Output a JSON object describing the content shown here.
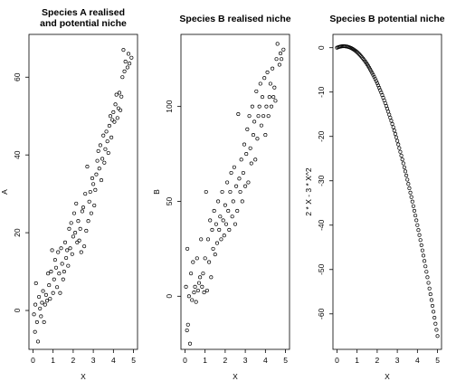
{
  "chart_data": [
    {
      "type": "scatter",
      "title": [
        "Species A realised",
        "and potential niche"
      ],
      "xlabel": "X",
      "ylabel": "A",
      "xlim": [
        -0.2,
        5.2
      ],
      "ylim": [
        -10,
        71
      ],
      "xticks": [
        0,
        1,
        2,
        3,
        4,
        5
      ],
      "yticks": [
        0,
        20,
        40,
        60
      ],
      "ytick_labels": [
        "0",
        "20",
        "40",
        "60"
      ],
      "points": [
        [
          0.05,
          -1
        ],
        [
          0.1,
          -5.5
        ],
        [
          0.12,
          1.5
        ],
        [
          0.15,
          7
        ],
        [
          0.2,
          -3
        ],
        [
          0.25,
          -8
        ],
        [
          0.3,
          3.5
        ],
        [
          0.35,
          0.5
        ],
        [
          0.4,
          -1.5
        ],
        [
          0.45,
          2
        ],
        [
          0.5,
          5
        ],
        [
          0.55,
          -3
        ],
        [
          0.6,
          1.5
        ],
        [
          0.65,
          4
        ],
        [
          0.7,
          2.5
        ],
        [
          0.75,
          9.5
        ],
        [
          0.8,
          6.5
        ],
        [
          0.85,
          3
        ],
        [
          0.9,
          10
        ],
        [
          0.95,
          15.5
        ],
        [
          1.0,
          4.5
        ],
        [
          1.05,
          8
        ],
        [
          1.1,
          13
        ],
        [
          1.15,
          11
        ],
        [
          1.2,
          6
        ],
        [
          1.25,
          15
        ],
        [
          1.3,
          9.5
        ],
        [
          1.35,
          4.5
        ],
        [
          1.4,
          16
        ],
        [
          1.45,
          12
        ],
        [
          1.5,
          8
        ],
        [
          1.55,
          10
        ],
        [
          1.6,
          17.5
        ],
        [
          1.65,
          13.5
        ],
        [
          1.7,
          15.5
        ],
        [
          1.75,
          11.5
        ],
        [
          1.8,
          21
        ],
        [
          1.85,
          16
        ],
        [
          1.9,
          22.5
        ],
        [
          1.95,
          14.5
        ],
        [
          2.0,
          19
        ],
        [
          2.05,
          25
        ],
        [
          2.1,
          20
        ],
        [
          2.15,
          27.5
        ],
        [
          2.2,
          17.5
        ],
        [
          2.25,
          23
        ],
        [
          2.3,
          18
        ],
        [
          2.35,
          21
        ],
        [
          2.4,
          15
        ],
        [
          2.45,
          25.5
        ],
        [
          2.5,
          26.5
        ],
        [
          2.55,
          16.5
        ],
        [
          2.6,
          30
        ],
        [
          2.65,
          20.5
        ],
        [
          2.7,
          37
        ],
        [
          2.75,
          23
        ],
        [
          2.8,
          28
        ],
        [
          2.85,
          30.5
        ],
        [
          2.9,
          25
        ],
        [
          2.95,
          34
        ],
        [
          3.0,
          32.5
        ],
        [
          3.05,
          27
        ],
        [
          3.1,
          31
        ],
        [
          3.15,
          35
        ],
        [
          3.2,
          38.5
        ],
        [
          3.25,
          41
        ],
        [
          3.3,
          36.5
        ],
        [
          3.35,
          42.5
        ],
        [
          3.4,
          33.5
        ],
        [
          3.45,
          39
        ],
        [
          3.5,
          45
        ],
        [
          3.55,
          38
        ],
        [
          3.6,
          41.5
        ],
        [
          3.65,
          46
        ],
        [
          3.7,
          43.5
        ],
        [
          3.75,
          40.5
        ],
        [
          3.8,
          47.5
        ],
        [
          3.85,
          50
        ],
        [
          3.9,
          44.5
        ],
        [
          3.95,
          49
        ],
        [
          4.0,
          51
        ],
        [
          4.05,
          48.5
        ],
        [
          4.1,
          53
        ],
        [
          4.15,
          55.5
        ],
        [
          4.2,
          49.5
        ],
        [
          4.25,
          52
        ],
        [
          4.3,
          56
        ],
        [
          4.35,
          51.5
        ],
        [
          4.4,
          55
        ],
        [
          4.45,
          60
        ],
        [
          4.5,
          67
        ],
        [
          4.55,
          61.5
        ],
        [
          4.6,
          64
        ],
        [
          4.7,
          62.5
        ],
        [
          4.75,
          66
        ],
        [
          4.8,
          63.5
        ],
        [
          4.9,
          65
        ]
      ]
    },
    {
      "type": "scatter",
      "title": [
        "Species B realised niche"
      ],
      "xlabel": "X",
      "ylabel": "B",
      "xlim": [
        -0.2,
        5.2
      ],
      "ylim": [
        -28,
        138
      ],
      "xticks": [
        0,
        1,
        2,
        3,
        4,
        5
      ],
      "yticks": [
        0,
        50,
        100
      ],
      "ytick_labels": [
        "0",
        "50",
        "100"
      ],
      "points": [
        [
          0.05,
          5
        ],
        [
          0.1,
          -18
        ],
        [
          0.12,
          25
        ],
        [
          0.15,
          -15
        ],
        [
          0.2,
          0
        ],
        [
          0.25,
          -25
        ],
        [
          0.3,
          12
        ],
        [
          0.35,
          -2
        ],
        [
          0.4,
          18
        ],
        [
          0.45,
          2
        ],
        [
          0.5,
          5
        ],
        [
          0.55,
          -3
        ],
        [
          0.6,
          20
        ],
        [
          0.65,
          3
        ],
        [
          0.7,
          7
        ],
        [
          0.75,
          10
        ],
        [
          0.8,
          30
        ],
        [
          0.85,
          5
        ],
        [
          0.9,
          12
        ],
        [
          0.95,
          2
        ],
        [
          1.0,
          20
        ],
        [
          1.05,
          55
        ],
        [
          1.1,
          3
        ],
        [
          1.15,
          30
        ],
        [
          1.2,
          18
        ],
        [
          1.25,
          40
        ],
        [
          1.3,
          10
        ],
        [
          1.35,
          35
        ],
        [
          1.4,
          25
        ],
        [
          1.45,
          45
        ],
        [
          1.5,
          22
        ],
        [
          1.55,
          38
        ],
        [
          1.6,
          28
        ],
        [
          1.65,
          50
        ],
        [
          1.7,
          35
        ],
        [
          1.75,
          42
        ],
        [
          1.8,
          30
        ],
        [
          1.85,
          55
        ],
        [
          1.9,
          40
        ],
        [
          1.95,
          32
        ],
        [
          2.0,
          48
        ],
        [
          2.05,
          38
        ],
        [
          2.1,
          60
        ],
        [
          2.15,
          45
        ],
        [
          2.2,
          35
        ],
        [
          2.25,
          55
        ],
        [
          2.3,
          65
        ],
        [
          2.35,
          42
        ],
        [
          2.4,
          50
        ],
        [
          2.45,
          68
        ],
        [
          2.5,
          38
        ],
        [
          2.55,
          58
        ],
        [
          2.6,
          45
        ],
        [
          2.65,
          96
        ],
        [
          2.7,
          62
        ],
        [
          2.75,
          55
        ],
        [
          2.8,
          72
        ],
        [
          2.85,
          50
        ],
        [
          2.9,
          65
        ],
        [
          2.95,
          80
        ],
        [
          3.0,
          58
        ],
        [
          3.05,
          75
        ],
        [
          3.1,
          88
        ],
        [
          3.15,
          60
        ],
        [
          3.2,
          95
        ],
        [
          3.25,
          78
        ],
        [
          3.3,
          70
        ],
        [
          3.35,
          100
        ],
        [
          3.4,
          85
        ],
        [
          3.45,
          92
        ],
        [
          3.5,
          72
        ],
        [
          3.55,
          108
        ],
        [
          3.6,
          83
        ],
        [
          3.65,
          95
        ],
        [
          3.7,
          100
        ],
        [
          3.75,
          112
        ],
        [
          3.8,
          90
        ],
        [
          3.85,
          105
        ],
        [
          3.9,
          95
        ],
        [
          3.95,
          115
        ],
        [
          4.0,
          85
        ],
        [
          4.05,
          100
        ],
        [
          4.1,
          118
        ],
        [
          4.15,
          95
        ],
        [
          4.2,
          105
        ],
        [
          4.25,
          112
        ],
        [
          4.3,
          100
        ],
        [
          4.35,
          120
        ],
        [
          4.4,
          105
        ],
        [
          4.45,
          110
        ],
        [
          4.5,
          103
        ],
        [
          4.55,
          125
        ],
        [
          4.6,
          133
        ],
        [
          4.7,
          122
        ],
        [
          4.75,
          128
        ],
        [
          4.8,
          125
        ],
        [
          4.9,
          130
        ]
      ]
    },
    {
      "type": "scatter",
      "title": [
        "Species B potential niche"
      ],
      "xlabel": "X",
      "ylabel": "2 * X - 3 * X^2",
      "xlim": [
        -0.2,
        5.2
      ],
      "ylim": [
        -68,
        3
      ],
      "xticks": [
        0,
        1,
        2,
        3,
        4,
        5
      ],
      "yticks": [
        0,
        -10,
        -20,
        -30,
        -40,
        -50,
        -60
      ],
      "ytick_labels": [
        "0",
        "-10",
        "-20",
        "-30",
        "-40",
        "-50",
        "-60"
      ],
      "points": [
        [
          0.0,
          0.0
        ],
        [
          0.05,
          0.09
        ],
        [
          0.1,
          0.17
        ],
        [
          0.15,
          0.23
        ],
        [
          0.2,
          0.28
        ],
        [
          0.25,
          0.31
        ],
        [
          0.3,
          0.33
        ],
        [
          0.35,
          0.33
        ],
        [
          0.4,
          0.32
        ],
        [
          0.45,
          0.29
        ],
        [
          0.5,
          0.25
        ],
        [
          0.55,
          0.19
        ],
        [
          0.6,
          0.12
        ],
        [
          0.65,
          0.03
        ],
        [
          0.7,
          -0.07
        ],
        [
          0.75,
          -0.19
        ],
        [
          0.8,
          -0.32
        ],
        [
          0.85,
          -0.47
        ],
        [
          0.9,
          -0.63
        ],
        [
          0.95,
          -0.81
        ],
        [
          1.0,
          -1.0
        ],
        [
          1.05,
          -1.21
        ],
        [
          1.1,
          -1.43
        ],
        [
          1.15,
          -1.67
        ],
        [
          1.2,
          -1.92
        ],
        [
          1.25,
          -2.19
        ],
        [
          1.3,
          -2.47
        ],
        [
          1.35,
          -2.77
        ],
        [
          1.4,
          -3.08
        ],
        [
          1.45,
          -3.41
        ],
        [
          1.5,
          -3.75
        ],
        [
          1.55,
          -4.11
        ],
        [
          1.6,
          -4.48
        ],
        [
          1.65,
          -4.87
        ],
        [
          1.7,
          -5.27
        ],
        [
          1.75,
          -5.69
        ],
        [
          1.8,
          -6.12
        ],
        [
          1.85,
          -6.57
        ],
        [
          1.9,
          -7.03
        ],
        [
          1.95,
          -7.51
        ],
        [
          2.0,
          -8.0
        ],
        [
          2.05,
          -8.51
        ],
        [
          2.1,
          -9.03
        ],
        [
          2.15,
          -9.57
        ],
        [
          2.2,
          -10.12
        ],
        [
          2.25,
          -10.69
        ],
        [
          2.3,
          -11.27
        ],
        [
          2.35,
          -11.87
        ],
        [
          2.4,
          -12.48
        ],
        [
          2.45,
          -13.11
        ],
        [
          2.5,
          -13.75
        ],
        [
          2.55,
          -14.41
        ],
        [
          2.6,
          -15.08
        ],
        [
          2.65,
          -15.77
        ],
        [
          2.7,
          -16.47
        ],
        [
          2.75,
          -17.19
        ],
        [
          2.8,
          -17.92
        ],
        [
          2.85,
          -18.67
        ],
        [
          2.9,
          -19.43
        ],
        [
          2.95,
          -20.21
        ],
        [
          3.0,
          -21.0
        ],
        [
          3.05,
          -21.81
        ],
        [
          3.1,
          -22.63
        ],
        [
          3.15,
          -23.47
        ],
        [
          3.2,
          -24.32
        ],
        [
          3.25,
          -25.19
        ],
        [
          3.3,
          -26.07
        ],
        [
          3.35,
          -26.97
        ],
        [
          3.4,
          -27.88
        ],
        [
          3.45,
          -28.81
        ],
        [
          3.5,
          -29.75
        ],
        [
          3.55,
          -30.71
        ],
        [
          3.6,
          -31.68
        ],
        [
          3.65,
          -32.67
        ],
        [
          3.7,
          -33.67
        ],
        [
          3.75,
          -34.69
        ],
        [
          3.8,
          -35.72
        ],
        [
          3.85,
          -36.77
        ],
        [
          3.9,
          -37.83
        ],
        [
          3.95,
          -38.91
        ],
        [
          4.0,
          -40.0
        ],
        [
          4.05,
          -41.11
        ],
        [
          4.1,
          -42.23
        ],
        [
          4.15,
          -43.37
        ],
        [
          4.2,
          -44.52
        ],
        [
          4.25,
          -45.69
        ],
        [
          4.3,
          -46.87
        ],
        [
          4.35,
          -48.07
        ],
        [
          4.4,
          -49.28
        ],
        [
          4.45,
          -50.51
        ],
        [
          4.5,
          -51.75
        ],
        [
          4.55,
          -53.01
        ],
        [
          4.6,
          -54.28
        ],
        [
          4.65,
          -55.57
        ],
        [
          4.7,
          -56.87
        ],
        [
          4.75,
          -58.19
        ],
        [
          4.8,
          -59.52
        ],
        [
          4.85,
          -60.87
        ],
        [
          4.9,
          -62.23
        ],
        [
          4.95,
          -63.61
        ],
        [
          5.0,
          -65.0
        ]
      ]
    }
  ]
}
